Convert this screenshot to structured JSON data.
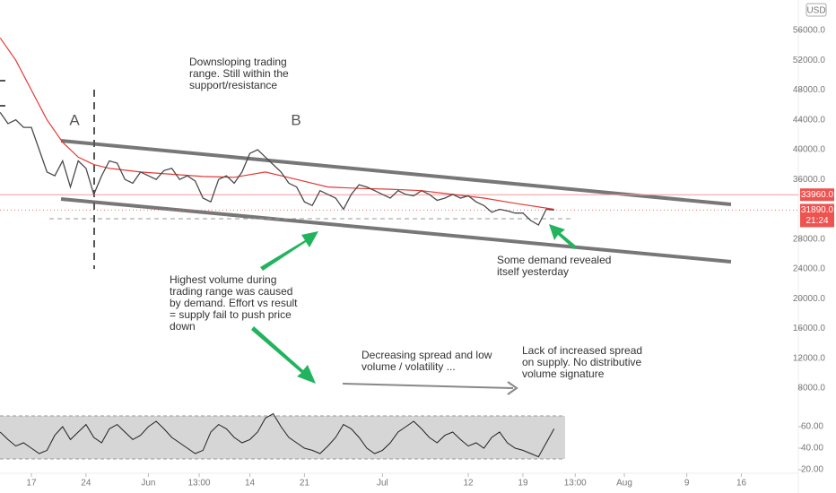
{
  "header": {
    "currency": "USD"
  },
  "chart_data": {
    "type": "line",
    "x": [
      -4,
      -3,
      -2,
      -1,
      0,
      1,
      2,
      3,
      4,
      5,
      6,
      7,
      8,
      9,
      10,
      11,
      12,
      13,
      14,
      15,
      16,
      17,
      18,
      19,
      20,
      21,
      22,
      23,
      24,
      25,
      26,
      27,
      28,
      29,
      30,
      31,
      32,
      33,
      34,
      35,
      36,
      37,
      38,
      39,
      40,
      41,
      42,
      43,
      44,
      45,
      46,
      47,
      48,
      49,
      50,
      51,
      52,
      53,
      54,
      55,
      56,
      57,
      58,
      59,
      60,
      61,
      62,
      63,
      64,
      65,
      66,
      67
    ],
    "values": [
      45000,
      43500,
      44000,
      43000,
      43000,
      40000,
      37000,
      36500,
      38500,
      35000,
      38500,
      37500,
      34000,
      36500,
      38500,
      38200,
      36000,
      35500,
      37000,
      36500,
      36000,
      37200,
      37500,
      36000,
      36500,
      35800,
      33500,
      33000,
      36000,
      36500,
      35500,
      37000,
      39500,
      40000,
      39000,
      38000,
      37000,
      35500,
      35000,
      33000,
      32500,
      34500,
      34000,
      33500,
      32000,
      34000,
      35300,
      35000,
      34500,
      34000,
      33500,
      34500,
      34000,
      33800,
      34500,
      34000,
      33200,
      33500,
      34000,
      33500,
      33800,
      33000,
      32500,
      31600,
      32000,
      31800,
      31500,
      31500,
      30500,
      29900,
      32000,
      31890
    ],
    "color": "#4a4a4a",
    "ma": {
      "color": "#e53935",
      "x": [
        -4,
        -2,
        0,
        2,
        4,
        6,
        8,
        10,
        14,
        18,
        22,
        26,
        30,
        34,
        38,
        42,
        46,
        50,
        54,
        58,
        62,
        67
      ],
      "values": [
        55000,
        52000,
        48000,
        44000,
        41000,
        39000,
        38000,
        37500,
        37000,
        36700,
        36400,
        36300,
        37000,
        36000,
        35000,
        34800,
        34700,
        34500,
        34000,
        33500,
        32800,
        32000
      ]
    },
    "xlim": [
      -4.02,
      98.3
    ],
    "xticks": [
      {
        "value": 0,
        "label": "17"
      },
      {
        "value": 7,
        "label": "24"
      },
      {
        "value": 15,
        "label": "Jun"
      },
      {
        "value": 21.5,
        "label": "13:00"
      },
      {
        "value": 28,
        "label": "14"
      },
      {
        "value": 35,
        "label": "21"
      },
      {
        "value": 45,
        "label": "Jul"
      },
      {
        "value": 56,
        "label": "12"
      },
      {
        "value": 63,
        "label": "19"
      },
      {
        "value": 69.7,
        "label": "13:00"
      },
      {
        "value": 76,
        "label": "Aug"
      },
      {
        "value": 84,
        "label": "9"
      },
      {
        "value": 91,
        "label": "16"
      }
    ],
    "ylim": [
      5353,
      60090
    ],
    "yticks": [
      {
        "value": 8000,
        "label": "8000.0"
      },
      {
        "value": 12000,
        "label": "12000.0"
      },
      {
        "value": 16000,
        "label": "16000.0"
      },
      {
        "value": 20000,
        "label": "20000.0"
      },
      {
        "value": 24000,
        "label": "24000.0"
      },
      {
        "value": 28000,
        "label": "28000.0"
      },
      {
        "value": 36000,
        "label": "36000.0"
      },
      {
        "value": 40000,
        "label": "40000.0"
      },
      {
        "value": 44000,
        "label": "44000.0"
      },
      {
        "value": 48000,
        "label": "48000.0"
      },
      {
        "value": 52000,
        "label": "52000.0"
      },
      {
        "value": 56000,
        "label": "56000.0"
      }
    ],
    "level": {
      "value": 33960,
      "label": "33960.0"
    },
    "last_price": {
      "value": 31890,
      "label": "31890.0",
      "time": "21:24"
    },
    "labels": [
      "A",
      "B"
    ],
    "annotations": [
      {
        "lines": [
          "Downsloping trading",
          "range. Still within the",
          "support/resistance"
        ]
      },
      {
        "lines": [
          "Highest volume during",
          "trading range was caused",
          "by demand. Effort vs result",
          "= supply fail to push price",
          "down"
        ]
      },
      {
        "lines": [
          "Some demand revealed",
          "itself yesterday"
        ]
      },
      {
        "lines": [
          "Decreasing spread and low",
          "volume / volatility ..."
        ]
      },
      {
        "lines": [
          "Lack of increased spread",
          "on supply. No distributive",
          "volume signature"
        ]
      }
    ],
    "rsi": {
      "type": "line",
      "color": "#222222",
      "values": [
        55,
        48,
        42,
        45,
        40,
        35,
        38,
        52,
        60,
        48,
        55,
        62,
        50,
        45,
        58,
        62,
        55,
        48,
        52,
        60,
        65,
        58,
        50,
        45,
        40,
        35,
        38,
        55,
        62,
        58,
        50,
        45,
        48,
        55,
        68,
        72,
        60,
        50,
        45,
        40,
        38,
        35,
        42,
        50,
        62,
        58,
        50,
        40,
        35,
        38,
        45,
        55,
        60,
        65,
        58,
        50,
        45,
        52,
        55,
        48,
        42,
        45,
        40,
        50,
        55,
        45,
        40,
        38,
        35,
        32,
        45,
        58
      ],
      "ylim": [
        15,
        77.5
      ],
      "yticks": [
        {
          "value": 60,
          "label": "60.00"
        },
        {
          "value": 40,
          "label": "40.00"
        },
        {
          "value": 20,
          "label": "20.00"
        }
      ],
      "band": [
        30,
        70
      ]
    }
  }
}
